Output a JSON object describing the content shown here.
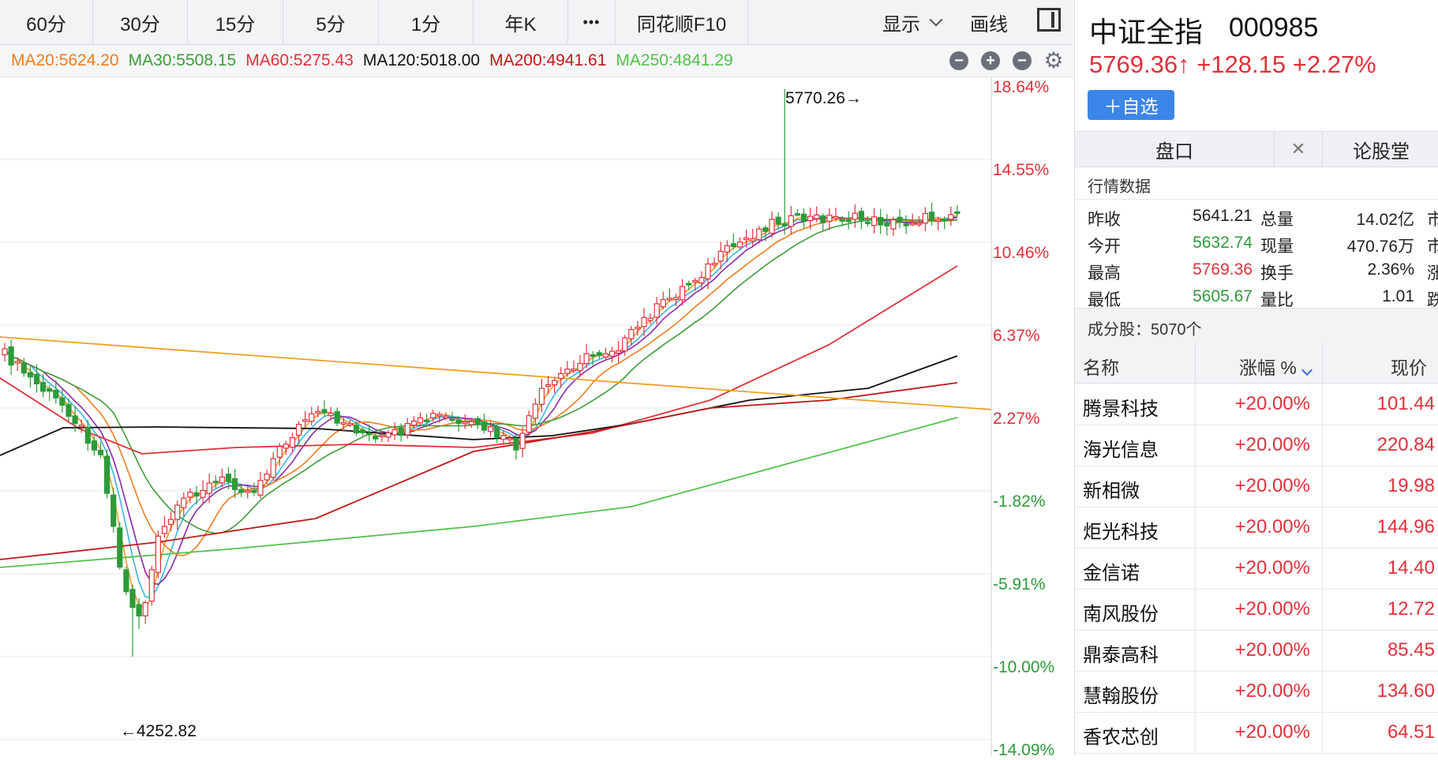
{
  "toolbar": {
    "periods": [
      "60分",
      "30分",
      "15分",
      "5分",
      "1分",
      "年K"
    ],
    "more": "•••",
    "f10": "同花顺F10",
    "display": "显示",
    "draw": "画线"
  },
  "ma_legend": [
    {
      "label": "MA20:5624.20",
      "color": "#f07c1e"
    },
    {
      "label": "MA30:5508.15",
      "color": "#3f9b3c"
    },
    {
      "label": "MA60:5275.43",
      "color": "#e0313b"
    },
    {
      "label": "MA120:5018.00",
      "color": "#111111"
    },
    {
      "label": "MA200:4941.61",
      "color": "#c01818"
    },
    {
      "label": "MA250:4841.29",
      "color": "#52c24a"
    }
  ],
  "chart_controls": {
    "minus": "−",
    "plus": "+",
    "zoom_out": "−",
    "settings": "⚙"
  },
  "chart_data": {
    "type": "candlestick",
    "y_axis_percent_labels": [
      "18.64%",
      "14.55%",
      "10.46%",
      "6.37%",
      "2.27%",
      "-1.82%",
      "-5.91%",
      "-10.00%",
      "-14.09%"
    ],
    "annotations": {
      "high": "5770.26→",
      "low": "←4252.82"
    },
    "up_color": "#e0313b",
    "down_color": "#2d9a3a",
    "ma_colors": {
      "ma5": "#f0a020",
      "ma10": "#8a2aa8",
      "ma_short": "#3cb4e0",
      "ma20": "#f07c1e",
      "ma30": "#3f9b3c",
      "ma60": "#e0313b",
      "ma120": "#111111",
      "ma200": "#c01818",
      "ma250": "#52c24a",
      "trendline": "#f0a020"
    }
  },
  "quote": {
    "name": "中证全指",
    "code": "000985",
    "price": "5769.36",
    "arrow": "↑",
    "change": "+128.15",
    "change_pct": "+2.27%",
    "add_button": "＋自选"
  },
  "tabs": {
    "pankou": "盘口",
    "close": "✕",
    "lungutang": "论股堂"
  },
  "hq": {
    "title": "行情数据",
    "rows": [
      {
        "k1": "昨收",
        "v1": "5641.21",
        "c1": "#222222",
        "k2": "总量",
        "v2": "14.02亿",
        "t": "市"
      },
      {
        "k1": "今开",
        "v1": "5632.74",
        "c1": "#2d9a3a",
        "k2": "现量",
        "v2": "470.76万",
        "t": "市"
      },
      {
        "k1": "最高",
        "v1": "5769.36",
        "c1": "#e0313b",
        "k2": "换手",
        "v2": "2.36%",
        "t": "涨"
      },
      {
        "k1": "最低",
        "v1": "5605.67",
        "c1": "#2d9a3a",
        "k2": "量比",
        "v2": "1.01",
        "t": "跌"
      }
    ]
  },
  "constituents": {
    "label": "成分股：5070个"
  },
  "table": {
    "headers": {
      "name": "名称",
      "change": "涨幅 %",
      "price": "现价"
    },
    "rows": [
      {
        "name": "腾景科技",
        "change": "+20.00%",
        "price": "101.44"
      },
      {
        "name": "海光信息",
        "change": "+20.00%",
        "price": "220.84"
      },
      {
        "name": "新相微",
        "change": "+20.00%",
        "price": "19.98"
      },
      {
        "name": "炬光科技",
        "change": "+20.00%",
        "price": "144.96"
      },
      {
        "name": "金信诺",
        "change": "+20.00%",
        "price": "14.40"
      },
      {
        "name": "南风股份",
        "change": "+20.00%",
        "price": "12.72"
      },
      {
        "name": "鼎泰高科",
        "change": "+20.00%",
        "price": "85.45"
      },
      {
        "name": "慧翰股份",
        "change": "+20.00%",
        "price": "134.60"
      },
      {
        "name": "香农芯创",
        "change": "+20.00%",
        "price": "64.51"
      }
    ]
  }
}
